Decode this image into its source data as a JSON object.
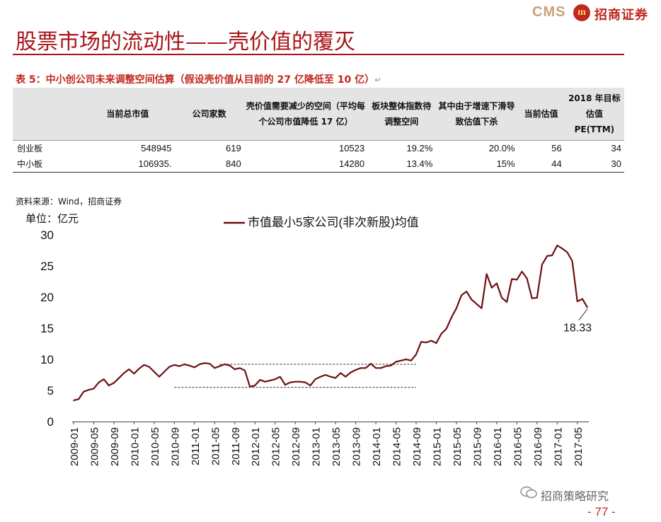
{
  "brand": {
    "cms": "CMS",
    "emblem": "m",
    "name_cn": "招商证券"
  },
  "title": "股票市场的流动性——壳价值的覆灭",
  "table": {
    "caption": "表 5：中小创公司未来调整空间估算（假设壳价值从目前的 27 亿降低至 10 亿）",
    "headers": [
      "",
      "当前总市值",
      "公司家数",
      "壳价值需要减少的空间（平均每个公司市值降低 17 亿）",
      "板块整体指数待调整空间",
      "其中由于增速下滑导致估值下杀",
      "当前估值",
      "2018 年目标估值 PE(TTM)"
    ],
    "rows": [
      [
        "创业板",
        "548945",
        "619",
        "10523",
        "19.2%",
        "20.0%",
        "56",
        "34"
      ],
      [
        "中小板",
        "106935.",
        "840",
        "14280",
        "13.4%",
        "15%",
        "44",
        "30"
      ]
    ]
  },
  "source": "资料来源：Wind，招商证券",
  "unit": "单位：亿元",
  "chart_data": {
    "type": "line",
    "title": "",
    "legend": [
      "市值最小5家公司(非次新股)均值"
    ],
    "legend_position": "top-center",
    "ylim": [
      0,
      30
    ],
    "yticks": [
      0,
      5,
      10,
      15,
      20,
      25,
      30
    ],
    "xtick_labels": [
      "2009-01",
      "2009-05",
      "2009-09",
      "2010-01",
      "2010-05",
      "2010-09",
      "2011-01",
      "2011-05",
      "2011-09",
      "2012-01",
      "2012-05",
      "2012-09",
      "2013-01",
      "2013-05",
      "2013-09",
      "2014-01",
      "2014-05",
      "2014-09",
      "2015-01",
      "2015-05",
      "2015-09",
      "2016-01",
      "2016-05",
      "2016-09",
      "2017-01",
      "2017-05"
    ],
    "series": [
      {
        "name": "市值最小5家公司(非次新股)均值",
        "color": "#6e0f12",
        "x": [
          "2009-01",
          "2009-02",
          "2009-03",
          "2009-04",
          "2009-05",
          "2009-06",
          "2009-07",
          "2009-08",
          "2009-09",
          "2009-10",
          "2009-11",
          "2009-12",
          "2010-01",
          "2010-02",
          "2010-03",
          "2010-04",
          "2010-05",
          "2010-06",
          "2010-07",
          "2010-08",
          "2010-09",
          "2010-10",
          "2010-11",
          "2010-12",
          "2011-01",
          "2011-02",
          "2011-03",
          "2011-04",
          "2011-05",
          "2011-06",
          "2011-07",
          "2011-08",
          "2011-09",
          "2011-10",
          "2011-11",
          "2011-12",
          "2012-01",
          "2012-02",
          "2012-03",
          "2012-04",
          "2012-05",
          "2012-06",
          "2012-07",
          "2012-08",
          "2012-09",
          "2012-10",
          "2012-11",
          "2012-12",
          "2013-01",
          "2013-02",
          "2013-03",
          "2013-04",
          "2013-05",
          "2013-06",
          "2013-07",
          "2013-08",
          "2013-09",
          "2013-10",
          "2013-11",
          "2013-12",
          "2014-01",
          "2014-02",
          "2014-03",
          "2014-04",
          "2014-05",
          "2014-06",
          "2014-07",
          "2014-08",
          "2014-09",
          "2014-10",
          "2014-11",
          "2014-12",
          "2015-01",
          "2015-02",
          "2015-03",
          "2015-04",
          "2015-05",
          "2015-06",
          "2015-07",
          "2015-08",
          "2015-09",
          "2015-10",
          "2015-11",
          "2015-12",
          "2016-01",
          "2016-02",
          "2016-03",
          "2016-04",
          "2016-05",
          "2016-06",
          "2016-07",
          "2016-08",
          "2016-09",
          "2016-10",
          "2016-11",
          "2016-12",
          "2017-01",
          "2017-02",
          "2017-03",
          "2017-04",
          "2017-05",
          "2017-06",
          "2017-07"
        ],
        "values": [
          3.4,
          3.6,
          4.8,
          5.1,
          5.3,
          6.3,
          6.8,
          5.8,
          6.2,
          7.0,
          7.8,
          8.4,
          7.7,
          8.5,
          9.1,
          8.8,
          8.0,
          7.2,
          8.0,
          8.8,
          9.1,
          8.9,
          9.2,
          9.0,
          8.7,
          9.2,
          9.4,
          9.3,
          8.6,
          8.9,
          9.2,
          9.0,
          8.4,
          8.6,
          8.2,
          5.6,
          5.8,
          6.7,
          6.4,
          6.6,
          6.8,
          7.2,
          5.9,
          6.3,
          6.4,
          6.4,
          6.3,
          5.8,
          6.8,
          7.2,
          7.5,
          7.2,
          7.0,
          7.8,
          7.2,
          7.9,
          8.3,
          8.6,
          8.6,
          9.3,
          8.6,
          8.6,
          8.9,
          9.0,
          9.6,
          9.8,
          10.0,
          9.8,
          10.8,
          12.8,
          12.7,
          13.0,
          12.6,
          14.1,
          14.9,
          16.7,
          18.2,
          20.3,
          20.9,
          19.6,
          18.9,
          18.2,
          23.7,
          21.5,
          22.2,
          19.9,
          19.2,
          22.9,
          22.8,
          24.1,
          23.0,
          19.8,
          19.9,
          25.2,
          26.6,
          26.7,
          28.3,
          27.8,
          27.2,
          25.8,
          19.3,
          19.7,
          18.33
        ]
      }
    ],
    "annotations": [
      {
        "text": "18.33",
        "x": "2017-07",
        "y": 18.33
      }
    ],
    "reference_lines": [
      {
        "from": "2011-06",
        "to": "2014-09",
        "y": 9.2,
        "style": "dashed"
      },
      {
        "from": "2010-09",
        "to": "2014-09",
        "y": 5.5,
        "style": "dashed"
      }
    ]
  },
  "watermark": "招商策略研究",
  "page_number": "- 77 -"
}
